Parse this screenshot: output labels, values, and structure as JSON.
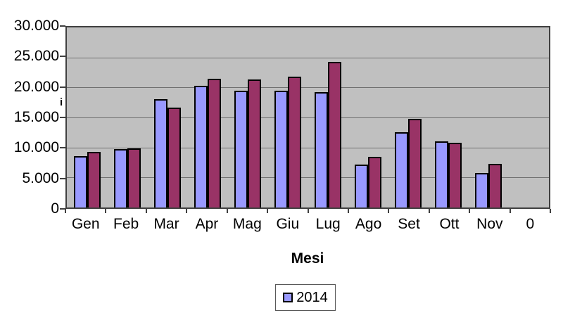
{
  "chart_data": {
    "type": "bar",
    "title": "",
    "xlabel": "Mesi",
    "ylabel": "",
    "categories": [
      "Gen",
      "Feb",
      "Mar",
      "Apr",
      "Mag",
      "Giu",
      "Lug",
      "Ago",
      "Set",
      "Ott",
      "Nov",
      "0"
    ],
    "series": [
      {
        "name": "2014",
        "color": "#9999FF",
        "border_color": "#000000",
        "values": [
          8500,
          9700,
          18000,
          20300,
          19400,
          19500,
          19200,
          7200,
          12500,
          11000,
          5700,
          0
        ]
      },
      {
        "name": "",
        "color": "#993366",
        "border_color": "#000000",
        "values": [
          9200,
          9900,
          16600,
          21500,
          21300,
          21800,
          24200,
          8400,
          14800,
          10800,
          7300,
          0
        ]
      }
    ],
    "ylim": [
      0,
      30000
    ],
    "ytick_step": 5000,
    "yticks": [
      {
        "value": 30000,
        "label": "30.000"
      },
      {
        "value": 25000,
        "label": "25.000"
      },
      {
        "value": 20000,
        "label": "20.000"
      },
      {
        "value": 15000,
        "label": "15.000"
      },
      {
        "value": 10000,
        "label": "10.000"
      },
      {
        "value": 5000,
        "label": "5.000"
      },
      {
        "value": 0,
        "label": "0"
      }
    ],
    "grid": true,
    "gridline_color": "#707070",
    "plot_bg": "#C0C0C0",
    "plot_border_color": "#404040",
    "legend": {
      "position": "bottom",
      "entries": [
        {
          "label": "2014",
          "swatch_color": "#9999FF"
        }
      ]
    },
    "stray_glyph": "i"
  }
}
